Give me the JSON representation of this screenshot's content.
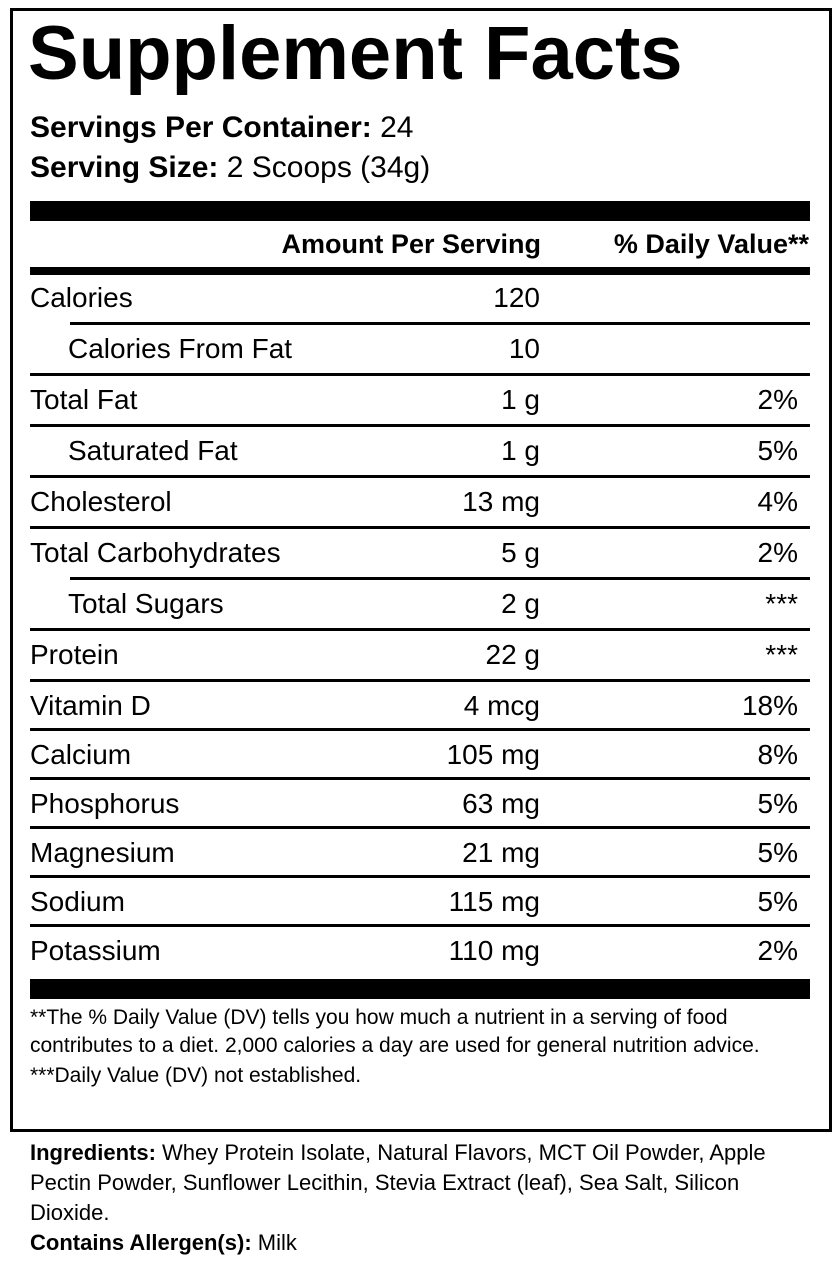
{
  "title": "Supplement Facts",
  "servings": {
    "per_container_label": "Servings Per Container:",
    "per_container": "24",
    "size_label": "Serving Size:",
    "size": "2 Scoops (34g)"
  },
  "header": {
    "amount": "Amount Per Serving",
    "dv": "% Daily Value**"
  },
  "rows": [
    {
      "name": "Calories",
      "amount": "120",
      "dv": ""
    },
    {
      "name": "Calories From Fat",
      "amount": "10",
      "dv": ""
    },
    {
      "name": "Total Fat",
      "amount": "1 g",
      "dv": "2%"
    },
    {
      "name": "Saturated Fat",
      "amount": "1 g",
      "dv": "5%"
    },
    {
      "name": "Cholesterol",
      "amount": "13 mg",
      "dv": "4%"
    },
    {
      "name": "Total Carbohydrates",
      "amount": "5 g",
      "dv": "2%"
    },
    {
      "name": "Total Sugars",
      "amount": "2 g",
      "dv": "***"
    },
    {
      "name": "Protein",
      "amount": "22 g",
      "dv": "***"
    },
    {
      "name": "Vitamin D",
      "amount": "4 mcg",
      "dv": "18%"
    },
    {
      "name": "Calcium",
      "amount": "105 mg",
      "dv": "8%"
    },
    {
      "name": "Phosphorus",
      "amount": "63 mg",
      "dv": "5%"
    },
    {
      "name": "Magnesium",
      "amount": "21 mg",
      "dv": "5%"
    },
    {
      "name": "Sodium",
      "amount": "115 mg",
      "dv": "5%"
    },
    {
      "name": "Potassium",
      "amount": "110 mg",
      "dv": "2%"
    }
  ],
  "footnotes": {
    "dv": "**The % Daily Value (DV) tells you how much a nutrient in a serving of food contributes to a diet. 2,000 calories a day are used for general nutrition advice.",
    "not_established": "***Daily Value (DV) not established."
  },
  "ingredients": {
    "label": "Ingredients:",
    "text": "Whey Protein Isolate, Natural Flavors, MCT Oil Powder, Apple Pectin Powder, Sunflower Lecithin, Stevia Extract (leaf), Sea Salt, Silicon Dioxide.",
    "allergen_label": "Contains Allergen(s):",
    "allergen": "Milk"
  }
}
